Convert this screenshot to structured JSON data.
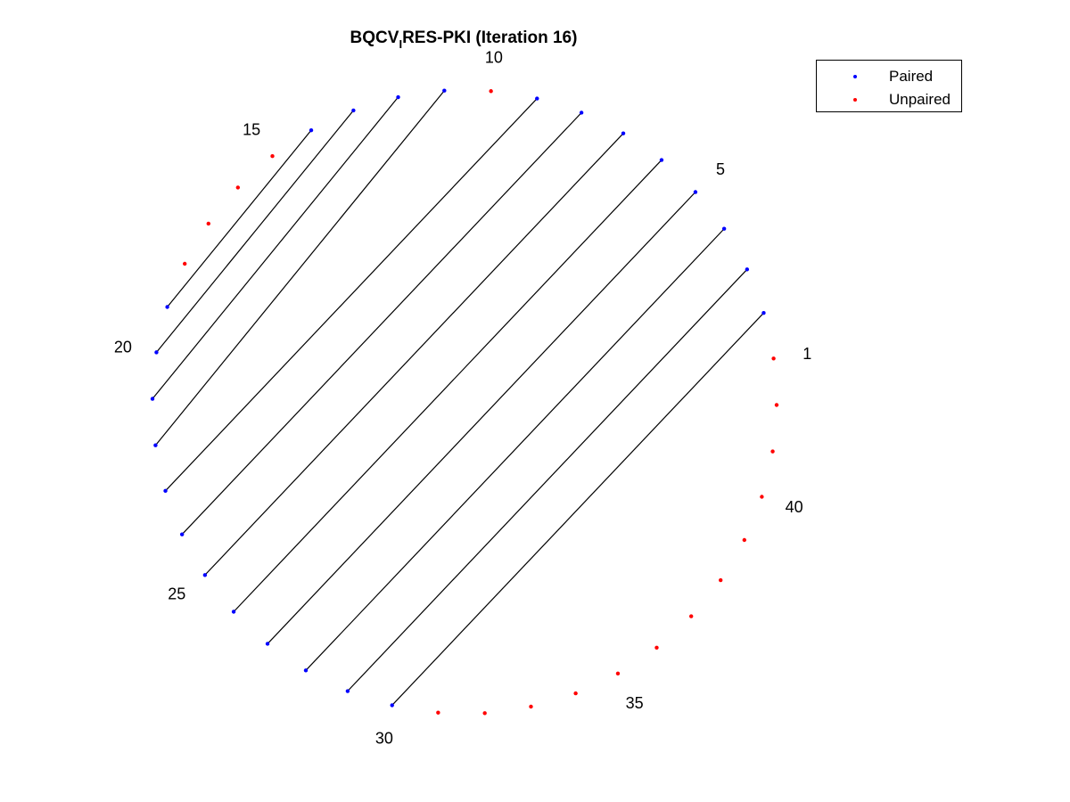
{
  "title": {
    "prefix": "BQCV",
    "subscript": "I",
    "suffix": "RES-PKI (Iteration 16)"
  },
  "legend": {
    "paired_label": "Paired",
    "unpaired_label": "Unpaired",
    "paired_color": "#0000ff",
    "unpaired_color": "#ff0000"
  },
  "link_color": "#000000",
  "positions": {
    "count": 42,
    "tick_labels": [
      "1",
      "5",
      "10",
      "15",
      "20",
      "25",
      "30",
      "35",
      "40"
    ],
    "tick_positions": [
      1,
      5,
      10,
      15,
      20,
      25,
      30,
      35,
      40
    ]
  },
  "chart_data": {
    "type": "arc",
    "nodes": 42,
    "pairs": [
      [
        2,
        30
      ],
      [
        3,
        29
      ],
      [
        4,
        28
      ],
      [
        5,
        27
      ],
      [
        6,
        26
      ],
      [
        7,
        25
      ],
      [
        8,
        24
      ],
      [
        9,
        23
      ],
      [
        11,
        22
      ],
      [
        12,
        21
      ],
      [
        13,
        20
      ],
      [
        14,
        19
      ]
    ],
    "unpaired": [
      1,
      10,
      15,
      16,
      17,
      18,
      31,
      32,
      33,
      34,
      35,
      36,
      37,
      38,
      39,
      40,
      41,
      42
    ],
    "series": [
      {
        "name": "Paired",
        "color": "#0000ff"
      },
      {
        "name": "Unpaired",
        "color": "#ff0000"
      }
    ]
  }
}
